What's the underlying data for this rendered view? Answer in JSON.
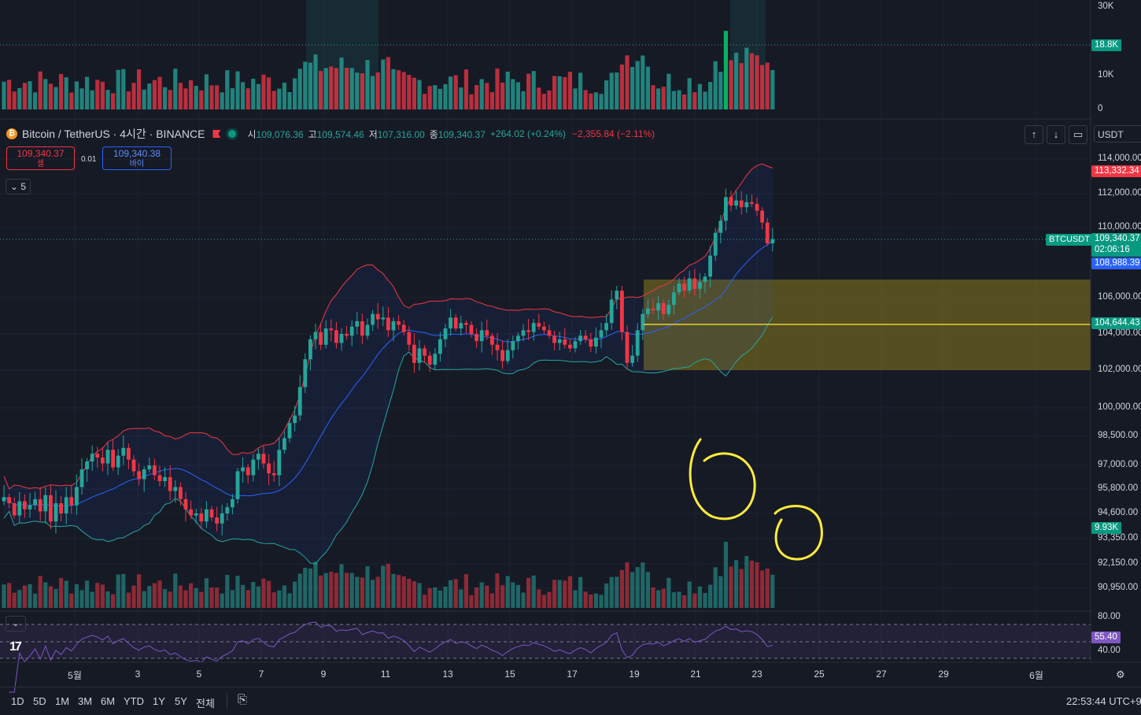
{
  "symbol_header": {
    "title": "Bitcoin / TetherUS · 4시간 · BINANCE",
    "open_label": "시",
    "open": "109,076.36",
    "high_label": "고",
    "high": "109,574.46",
    "low_label": "저",
    "low": "107,316.00",
    "close_label": "종",
    "close": "109,340.37",
    "change": "+264.02 (+0.24%)",
    "change2": "−2,355.84 (−2.11%)"
  },
  "trade": {
    "sell_price": "109,340.37",
    "sell_label": "셀",
    "spread": "0.01",
    "buy_price": "109,340.38",
    "buy_label": "바이"
  },
  "indicators_toggle": "5",
  "currency": "USDT",
  "volume_axis": [
    "30K",
    "10K",
    "0"
  ],
  "volume_tag": "18.8K",
  "price_axis": [
    "114,000.00",
    "112,000.00",
    "110,000.00",
    "106,000.00",
    "104,000.00",
    "102,000.00",
    "100,000.00",
    "98,500.00",
    "97,000.00",
    "95,800.00",
    "94,600.00",
    "93,350.00",
    "92,150.00",
    "90,950.00"
  ],
  "price_tags": {
    "upper_band": "113,332.34",
    "symbol": "BTCUSDT",
    "last_price": "109,340.37",
    "countdown": "02:06:16",
    "middle_band": "108,988.39",
    "hline": "104,644.43",
    "volume2": "9.93K"
  },
  "rsi_axis": [
    "80.00",
    "40.00"
  ],
  "rsi_value": "55.40",
  "x_axis": [
    "5월",
    "3",
    "5",
    "7",
    "9",
    "11",
    "13",
    "15",
    "17",
    "19",
    "21",
    "23",
    "25",
    "27",
    "29",
    "6월"
  ],
  "timeframes": [
    "1D",
    "5D",
    "1M",
    "3M",
    "6M",
    "YTD",
    "1Y",
    "5Y",
    "전체"
  ],
  "clock": "22:53:44 UTC+9",
  "colors": {
    "up": "#26a69a",
    "down": "#f23645",
    "bb_upper": "#f23645",
    "bb_mid": "#2962ff",
    "bb_lower": "#26a69a",
    "zone": "#8a7a1e",
    "rsi": "#7e57c2",
    "annotation": "#ffeb3b"
  },
  "chart_data": {
    "type": "candlestick",
    "interval": "4h",
    "ylim": [
      89800,
      114800
    ],
    "closes": [
      95400,
      95100,
      94500,
      95200,
      94800,
      95000,
      95300,
      94700,
      95500,
      94200,
      95100,
      94600,
      95400,
      95000,
      95900,
      96800,
      97200,
      97600,
      97400,
      97100,
      97800,
      96900,
      97500,
      97900,
      97300,
      96700,
      96300,
      96800,
      97000,
      96500,
      96200,
      96400,
      95700,
      95900,
      95300,
      94800,
      94500,
      94600,
      94200,
      94800,
      94400,
      94100,
      94600,
      94900,
      95300,
      96700,
      96900,
      96500,
      97300,
      97600,
      97100,
      96600,
      96500,
      97800,
      98400,
      99200,
      99600,
      101100,
      102600,
      103700,
      104100,
      103400,
      104300,
      104200,
      103500,
      104000,
      103900,
      104400,
      104700,
      103900,
      104500,
      105100,
      104800,
      104900,
      104200,
      104700,
      104500,
      104100,
      103400,
      102400,
      103200,
      102800,
      102300,
      102900,
      103700,
      104300,
      104900,
      104300,
      104600,
      104500,
      104000,
      103600,
      104200,
      103900,
      103400,
      103100,
      102500,
      103100,
      103600,
      103900,
      104200,
      104100,
      104600,
      104400,
      104200,
      103900,
      103500,
      103700,
      103400,
      103200,
      103600,
      103900,
      103700,
      103300,
      103800,
      104200,
      104600,
      105900,
      106400,
      104100,
      102400,
      102800,
      104200,
      105100,
      105400,
      105300,
      105700,
      105100,
      105600,
      106300,
      106800,
      106400,
      107100,
      106500,
      106900,
      107200,
      108400,
      109700,
      110400,
      111800,
      111300,
      111600,
      111200,
      111500,
      111400,
      111000,
      110300,
      109100,
      109340
    ],
    "volume_upper_pane_max_label": "30K",
    "rsi_last": 55.4,
    "horizontal_line": 104644.43,
    "zone": {
      "from": 102000,
      "to": 107400
    }
  }
}
